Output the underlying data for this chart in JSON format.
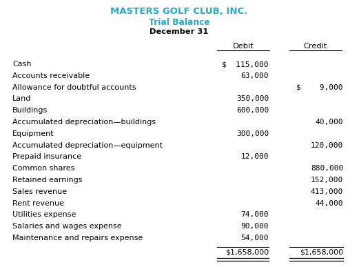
{
  "title1": "MASTERS GOLF CLUB, INC.",
  "title2": "Trial Balance",
  "title3": "December 31",
  "title1_color": "#2aa8c4",
  "title2_color": "#2aa8c4",
  "title3_color": "#000000",
  "col_debit": "Debit",
  "col_credit": "Credit",
  "rows": [
    {
      "account": "Cash",
      "debit": "$  115,000",
      "credit": ""
    },
    {
      "account": "Accounts receivable",
      "debit": "63,000",
      "credit": ""
    },
    {
      "account": "Allowance for doubtful accounts",
      "debit": "",
      "credit": "$    9,000"
    },
    {
      "account": "Land",
      "debit": "350,000",
      "credit": ""
    },
    {
      "account": "Buildings",
      "debit": "600,000",
      "credit": ""
    },
    {
      "account": "Accumulated depreciation—buildings",
      "debit": "",
      "credit": "40,000"
    },
    {
      "account": "Equipment",
      "debit": "300,000",
      "credit": ""
    },
    {
      "account": "Accumulated depreciation—equipment",
      "debit": "",
      "credit": "120,000"
    },
    {
      "account": "Prepaid insurance",
      "debit": "12,000",
      "credit": ""
    },
    {
      "account": "Common shares",
      "debit": "",
      "credit": "880,000"
    },
    {
      "account": "Retained earnings",
      "debit": "",
      "credit": "152,000"
    },
    {
      "account": "Sales revenue",
      "debit": "",
      "credit": "413,000"
    },
    {
      "account": "Rent revenue",
      "debit": "",
      "credit": "44,000"
    },
    {
      "account": "Utilities expense",
      "debit": "74,000",
      "credit": ""
    },
    {
      "account": "Salaries and wages expense",
      "debit": "90,000",
      "credit": ""
    },
    {
      "account": "Maintenance and repairs expense",
      "debit": "54,000",
      "credit": ""
    }
  ],
  "total_debit": "$1,658,000",
  "total_credit": "$1,658,000",
  "bg_color": "#ffffff",
  "text_color": "#000000",
  "title1_fontsize": 9.5,
  "title2_fontsize": 8.8,
  "title3_fontsize": 8.2,
  "header_fontsize": 8.2,
  "row_fontsize": 8.0,
  "total_fontsize": 8.0,
  "fig_width": 5.21,
  "fig_height": 3.87,
  "fig_dpi": 100
}
